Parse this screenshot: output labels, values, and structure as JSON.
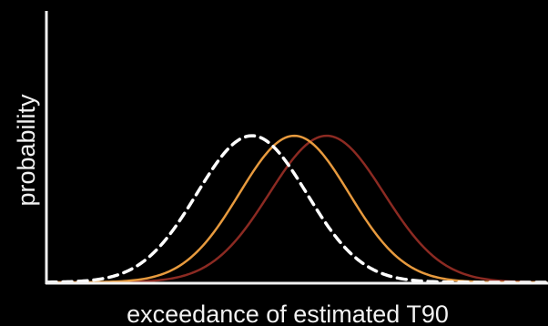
{
  "chart_data": {
    "type": "line",
    "xlabel": "exceedance of estimated T90",
    "ylabel": "probability",
    "xlim": [
      0,
      100
    ],
    "ylim": [
      0,
      100
    ],
    "grid": false,
    "legend": "none",
    "series": [
      {
        "values_from": "gaussian",
        "mean": 41,
        "sd": 11,
        "peak": 54,
        "color": "#ffffff",
        "style": "dashed"
      },
      {
        "values_from": "gaussian",
        "mean": 49.5,
        "sd": 11,
        "peak": 54,
        "color": "#e79a3e",
        "style": "solid"
      },
      {
        "values_from": "gaussian",
        "mean": 56,
        "sd": 11.5,
        "peak": 54,
        "color": "#8b2a22",
        "style": "solid"
      }
    ]
  }
}
